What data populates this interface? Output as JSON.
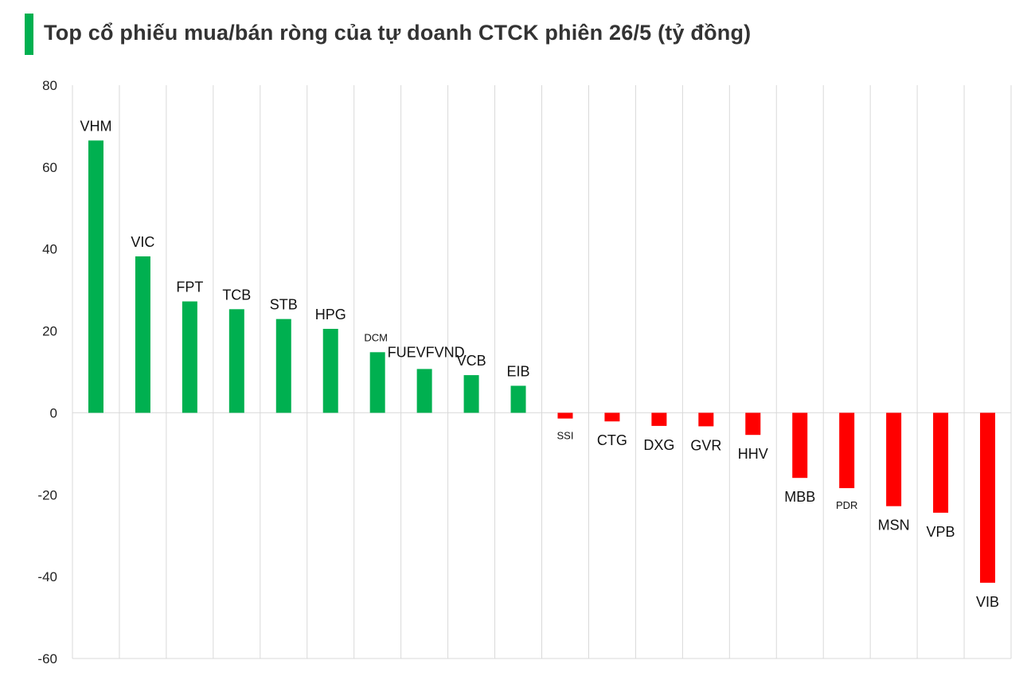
{
  "title": "Top cổ phiếu mua/bán ròng của tự doanh CTCK phiên 26/5 (tỷ đồng)",
  "colors": {
    "positive": "#00b050",
    "negative": "#ff0000",
    "title_accent": "#00b050",
    "grid": "#d9d9d9"
  },
  "chart_data": {
    "type": "bar",
    "title": "Top cổ phiếu mua/bán ròng của tự doanh CTCK phiên 26/5 (tỷ đồng)",
    "xlabel": "",
    "ylabel": "",
    "ylim": [
      -60,
      80
    ],
    "yticks": [
      80,
      60,
      40,
      20,
      0,
      -20,
      -40,
      -60
    ],
    "ytick_labels": [
      "80",
      "60",
      "40",
      "20",
      "0",
      "-20",
      "-40",
      "-60"
    ],
    "grid": "vertical",
    "categories": [
      "VHM",
      "VIC",
      "FPT",
      "TCB",
      "STB",
      "HPG",
      "DCM",
      "FUEVFVND",
      "VCB",
      "EIB",
      "SSI",
      "CTG",
      "DXG",
      "GVR",
      "HHV",
      "MBB",
      "PDR",
      "MSN",
      "VPB",
      "VIB"
    ],
    "values": [
      66.5,
      38.2,
      27.2,
      25.3,
      22.9,
      20.5,
      14.8,
      10.7,
      9.2,
      6.6,
      -1.4,
      -2.1,
      -3.2,
      -3.3,
      -5.4,
      -15.9,
      -18.4,
      -22.8,
      -24.4,
      -41.5
    ]
  }
}
